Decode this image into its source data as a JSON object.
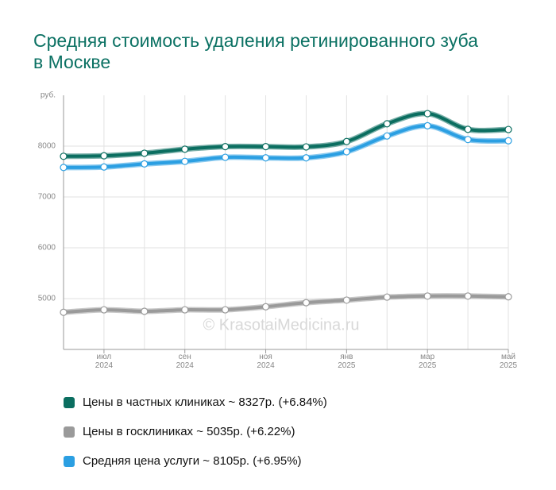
{
  "chart_data": {
    "type": "line",
    "title": "Средняя стоимость удаления ретинированного зуба в Москве",
    "y_unit_label": "руб.",
    "watermark": "© KrasotaiMedicina.ru",
    "categories": [
      null,
      "июл\n2024",
      null,
      "сен\n2024",
      null,
      "ноя\n2024",
      null,
      "янв\n2025",
      null,
      "мар\n2025",
      null,
      "май\n2025"
    ],
    "series": [
      {
        "name": "Цены в частных клиниках ~ 8327р. (+6.84%)",
        "color": "#0b6e60",
        "values": [
          7800,
          7810,
          7860,
          7940,
          7990,
          7990,
          7985,
          8090,
          8440,
          8640,
          8330,
          8327
        ]
      },
      {
        "name": "Цены в госклиниках ~ 5035р. (+6.22%)",
        "color": "#9a9a9a",
        "values": [
          4730,
          4780,
          4750,
          4780,
          4780,
          4840,
          4920,
          4970,
          5030,
          5050,
          5050,
          5035
        ]
      },
      {
        "name": "Средняя цена услуги ~ 8105р. (+6.95%)",
        "color": "#2b9fe2",
        "values": [
          7580,
          7590,
          7650,
          7700,
          7780,
          7770,
          7770,
          7890,
          8200,
          8400,
          8130,
          8105
        ]
      }
    ],
    "ylim": [
      4000,
      9000
    ],
    "yticks": [
      5000,
      6000,
      7000,
      8000
    ],
    "grid": true
  }
}
